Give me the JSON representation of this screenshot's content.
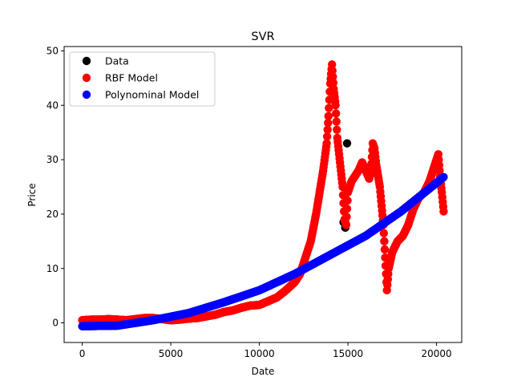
{
  "chart_data": {
    "type": "scatter",
    "title": "SVR",
    "xlabel": "Date",
    "ylabel": "Price",
    "xlim": [
      -1020,
      21420
    ],
    "ylim": [
      -3.6,
      50.8
    ],
    "xticks": [
      0,
      5000,
      10000,
      15000,
      20000
    ],
    "yticks": [
      0,
      10,
      20,
      30,
      40,
      50
    ],
    "legend": {
      "position": "top-left",
      "entries": [
        {
          "label": "Data",
          "color": "#000000"
        },
        {
          "label": "RBF Model",
          "color": "#ff0000"
        },
        {
          "label": "Polynominal Model",
          "color": "#0000ff"
        }
      ]
    },
    "series": [
      {
        "name": "Data",
        "color": "#000000",
        "points": [
          [
            14850,
            17.5
          ],
          [
            14750,
            18.5
          ],
          [
            14950,
            33.0
          ]
        ]
      },
      {
        "name": "RBF Model",
        "color": "#ff0000",
        "points": [
          [
            0,
            0.5
          ],
          [
            500,
            0.6
          ],
          [
            1000,
            0.6
          ],
          [
            1500,
            0.7
          ],
          [
            2000,
            0.6
          ],
          [
            2500,
            0.5
          ],
          [
            3000,
            0.7
          ],
          [
            3500,
            0.9
          ],
          [
            4000,
            0.9
          ],
          [
            4500,
            0.7
          ],
          [
            5000,
            0.5
          ],
          [
            5500,
            0.6
          ],
          [
            6000,
            0.8
          ],
          [
            6500,
            0.9
          ],
          [
            7000,
            1.2
          ],
          [
            7500,
            1.5
          ],
          [
            8000,
            2.0
          ],
          [
            8500,
            2.3
          ],
          [
            9000,
            2.8
          ],
          [
            9500,
            3.2
          ],
          [
            10000,
            3.3
          ],
          [
            10500,
            4.0
          ],
          [
            11000,
            4.7
          ],
          [
            11500,
            6.0
          ],
          [
            12000,
            7.5
          ],
          [
            12300,
            9.0
          ],
          [
            12600,
            12.0
          ],
          [
            12900,
            15.0
          ],
          [
            13200,
            20.0
          ],
          [
            13400,
            24.0
          ],
          [
            13600,
            28.0
          ],
          [
            13800,
            33.0
          ],
          [
            13900,
            38.0
          ],
          [
            14000,
            44.0
          ],
          [
            14100,
            47.5
          ],
          [
            14200,
            43.0
          ],
          [
            14300,
            40.0
          ],
          [
            14400,
            34.0
          ],
          [
            14500,
            31.0
          ],
          [
            14600,
            28.0
          ],
          [
            14700,
            25.0
          ],
          [
            14800,
            19.0
          ],
          [
            14900,
            18.0
          ],
          [
            15000,
            24.0
          ],
          [
            15200,
            26.0
          ],
          [
            15400,
            27.0
          ],
          [
            15600,
            28.0
          ],
          [
            15800,
            29.5
          ],
          [
            16000,
            28.0
          ],
          [
            16200,
            26.5
          ],
          [
            16300,
            28.0
          ],
          [
            16400,
            33.0
          ],
          [
            16500,
            32.0
          ],
          [
            16600,
            29.0
          ],
          [
            16800,
            25.0
          ],
          [
            17000,
            18.0
          ],
          [
            17100,
            12.0
          ],
          [
            17200,
            6.0
          ],
          [
            17300,
            10.0
          ],
          [
            17500,
            13.0
          ],
          [
            17800,
            15.0
          ],
          [
            18100,
            16.0
          ],
          [
            18400,
            18.0
          ],
          [
            18700,
            21.0
          ],
          [
            19000,
            23.0
          ],
          [
            19300,
            24.0
          ],
          [
            19600,
            26.0
          ],
          [
            19900,
            29.0
          ],
          [
            20100,
            31.0
          ],
          [
            20200,
            27.0
          ],
          [
            20300,
            24.0
          ],
          [
            20400,
            20.5
          ]
        ]
      },
      {
        "name": "Polynominal Model",
        "color": "#0000ff",
        "points": [
          [
            0,
            -0.6
          ],
          [
            2000,
            -0.5
          ],
          [
            4000,
            0.5
          ],
          [
            6000,
            1.8
          ],
          [
            8000,
            3.8
          ],
          [
            10000,
            6.0
          ],
          [
            12000,
            9.0
          ],
          [
            14000,
            12.5
          ],
          [
            16000,
            16.0
          ],
          [
            18000,
            20.5
          ],
          [
            20400,
            26.8
          ]
        ]
      }
    ]
  }
}
